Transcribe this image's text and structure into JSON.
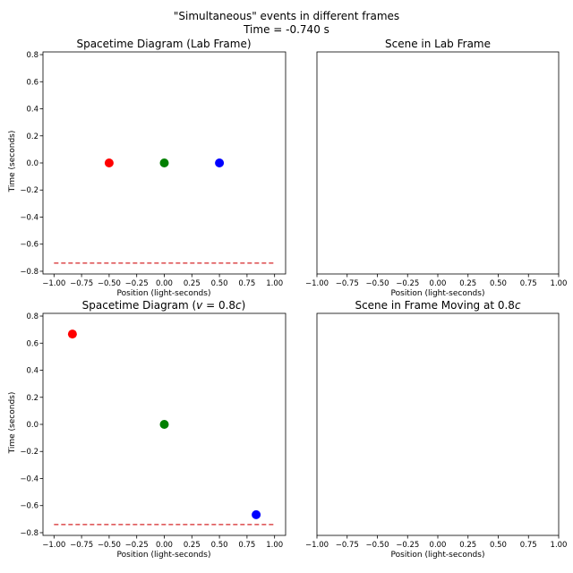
{
  "figure": {
    "suptitle_line1": "\"Simultaneous\" events in different frames",
    "suptitle_line2": "Time = -0.740 s"
  },
  "chart_data": [
    {
      "type": "scatter",
      "title": "Spacetime Diagram (Lab Frame)",
      "xlabel": "Position (light-seconds)",
      "ylabel": "Time (seconds)",
      "xlim": [
        -1.1,
        1.1
      ],
      "ylim": [
        -0.82,
        0.82
      ],
      "xticks": [
        -1.0,
        -0.75,
        -0.5,
        -0.25,
        0.0,
        0.25,
        0.5,
        0.75,
        1.0
      ],
      "xtick_labels": [
        "−1.00",
        "−0.75",
        "−0.50",
        "−0.25",
        "0.00",
        "0.25",
        "0.50",
        "0.75",
        "1.00"
      ],
      "yticks": [
        -0.8,
        -0.6,
        -0.4,
        -0.2,
        0.0,
        0.2,
        0.4,
        0.6,
        0.8
      ],
      "ytick_labels": [
        "−0.8",
        "−0.6",
        "−0.4",
        "−0.2",
        "0.0",
        "0.2",
        "0.4",
        "0.6",
        "0.8"
      ],
      "points": [
        {
          "x": -0.5,
          "y": 0.0,
          "color": "#ff0000"
        },
        {
          "x": 0.0,
          "y": 0.0,
          "color": "#008000"
        },
        {
          "x": 0.5,
          "y": 0.0,
          "color": "#0000ff"
        }
      ],
      "current_time_line": {
        "y": -0.74,
        "x_from": -1.0,
        "x_to": 1.0,
        "color": "#d62728",
        "style": "dashed"
      }
    },
    {
      "type": "scatter",
      "title": "Scene in Lab Frame",
      "xlabel": "Position (light-seconds)",
      "ylabel": "",
      "xlim": [
        -1.0,
        1.0
      ],
      "xticks": [
        -1.0,
        -0.75,
        -0.5,
        -0.25,
        0.0,
        0.25,
        0.5,
        0.75,
        1.0
      ],
      "xtick_labels": [
        "−1.00",
        "−0.75",
        "−0.50",
        "−0.25",
        "0.00",
        "0.25",
        "0.50",
        "0.75",
        "1.00"
      ],
      "points": []
    },
    {
      "type": "scatter",
      "title_prefix": "Spacetime Diagram (",
      "title_math": "v",
      "title_suffix": " = 0.8",
      "title_math2": "c",
      "title_end": ")",
      "xlabel": "Position (light-seconds)",
      "ylabel": "Time (seconds)",
      "xlim": [
        -1.1,
        1.1
      ],
      "ylim": [
        -0.82,
        0.82
      ],
      "xticks": [
        -1.0,
        -0.75,
        -0.5,
        -0.25,
        0.0,
        0.25,
        0.5,
        0.75,
        1.0
      ],
      "xtick_labels": [
        "−1.00",
        "−0.75",
        "−0.50",
        "−0.25",
        "0.00",
        "0.25",
        "0.50",
        "0.75",
        "1.00"
      ],
      "yticks": [
        -0.8,
        -0.6,
        -0.4,
        -0.2,
        0.0,
        0.2,
        0.4,
        0.6,
        0.8
      ],
      "ytick_labels": [
        "−0.8",
        "−0.6",
        "−0.4",
        "−0.2",
        "0.0",
        "0.2",
        "0.4",
        "0.6",
        "0.8"
      ],
      "points": [
        {
          "x": -0.833,
          "y": 0.667,
          "color": "#ff0000"
        },
        {
          "x": 0.0,
          "y": 0.0,
          "color": "#008000"
        },
        {
          "x": 0.833,
          "y": -0.667,
          "color": "#0000ff"
        }
      ],
      "current_time_line": {
        "y": -0.74,
        "x_from": -1.0,
        "x_to": 1.0,
        "color": "#d62728",
        "style": "dashed"
      }
    },
    {
      "type": "scatter",
      "title_prefix": "Scene in Frame Moving at 0.8",
      "title_math": "c",
      "xlabel": "Position (light-seconds)",
      "ylabel": "",
      "xlim": [
        -1.0,
        1.0
      ],
      "xticks": [
        -1.0,
        -0.75,
        -0.5,
        -0.25,
        0.0,
        0.25,
        0.5,
        0.75,
        1.0
      ],
      "xtick_labels": [
        "−1.00",
        "−0.75",
        "−0.50",
        "−0.25",
        "0.00",
        "0.25",
        "0.50",
        "0.75",
        "1.00"
      ],
      "points": []
    }
  ]
}
